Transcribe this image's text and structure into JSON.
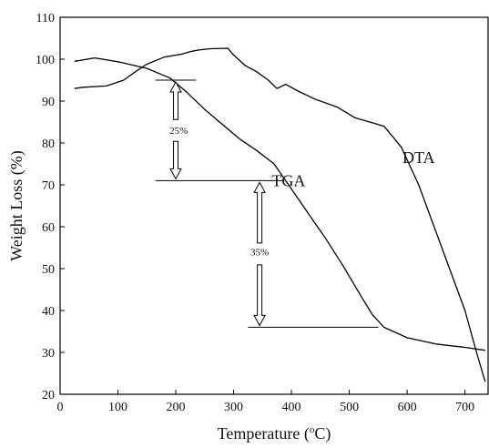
{
  "chart_data": {
    "type": "line",
    "xlabel": "Temperature (°C)",
    "xlabel_parts": {
      "before": "Temperature (",
      "sup": "o",
      "after": "C)"
    },
    "ylabel": "Weight Loss (%)",
    "xlim": [
      0,
      740
    ],
    "ylim": [
      20,
      110
    ],
    "xticks": [
      0,
      100,
      200,
      300,
      400,
      500,
      600,
      700
    ],
    "yticks": [
      20,
      30,
      40,
      50,
      60,
      70,
      80,
      90,
      100,
      110
    ],
    "grid": false,
    "legend": "none",
    "series": [
      {
        "name": "TGA",
        "x": [
          25,
          60,
          100,
          150,
          190,
          220,
          250,
          280,
          310,
          340,
          370,
          385,
          400,
          430,
          460,
          490,
          520,
          540,
          560,
          600,
          650,
          700,
          735
        ],
        "y": [
          99.5,
          100.3,
          99.4,
          97.8,
          95.5,
          92,
          88,
          84.5,
          81,
          78.2,
          75,
          72,
          69,
          63,
          57,
          50.5,
          43.5,
          39,
          36,
          33.5,
          32,
          31.2,
          30.5
        ]
      },
      {
        "name": "DTA",
        "x": [
          25,
          40,
          80,
          110,
          130,
          150,
          180,
          210,
          225,
          240,
          260,
          290,
          300,
          320,
          340,
          360,
          375,
          390,
          410,
          440,
          480,
          510,
          540,
          560,
          590,
          620,
          660,
          700,
          720,
          735
        ],
        "y": [
          93,
          93.3,
          93.6,
          95,
          97,
          98.8,
          100.5,
          101.2,
          101.8,
          102.2,
          102.5,
          102.6,
          101,
          98.5,
          97,
          95,
          93,
          94,
          92.5,
          90.5,
          88.5,
          86,
          84.8,
          84,
          79,
          70,
          55,
          40,
          30,
          23
        ]
      }
    ],
    "annotations": [
      {
        "text": "TGA",
        "x": 395,
        "y": 71
      },
      {
        "text": "DTA",
        "x": 620,
        "y": 76.5
      },
      {
        "text": "25%",
        "x": 205,
        "y": 83
      },
      {
        "text": "35%",
        "x": 345,
        "y": 54
      }
    ],
    "reference_lines": [
      {
        "x1": 165,
        "x2": 235,
        "y": 95
      },
      {
        "x1": 165,
        "x2": 385,
        "y": 71
      },
      {
        "x1": 325,
        "x2": 550,
        "y": 36
      }
    ],
    "arrows": [
      {
        "x": 200,
        "y_from": 95,
        "y_to": 71
      },
      {
        "x": 345,
        "y_from": 71,
        "y_to": 36
      }
    ]
  }
}
